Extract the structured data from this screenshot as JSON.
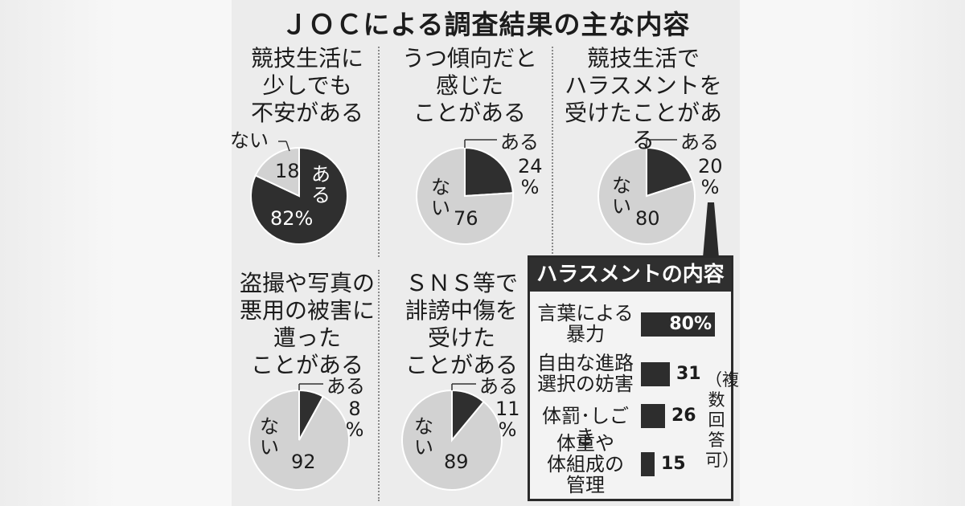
{
  "title": "ＪＯＣによる調査結果の主な内容",
  "labels": {
    "yes": "ある",
    "no": "ない",
    "pct_sign": "%"
  },
  "colors": {
    "dark": "#2f2f2f",
    "light": "#d2d2d2",
    "outline": "#ffffff"
  },
  "chart_data": [
    {
      "type": "pie",
      "title": "競技生活に\n少しでも\n不安がある",
      "slices": [
        {
          "label": "ある",
          "value": 82,
          "text": "82%"
        },
        {
          "label": "ない",
          "value": 18,
          "text": "18"
        }
      ]
    },
    {
      "type": "pie",
      "title": "うつ傾向だと\n感じた\nことがある",
      "slices": [
        {
          "label": "ある",
          "value": 24,
          "text": "24"
        },
        {
          "label": "ない",
          "value": 76,
          "text": "76"
        }
      ]
    },
    {
      "type": "pie",
      "title": "競技生活で\nハラスメントを\n受けたことがある",
      "slices": [
        {
          "label": "ある",
          "value": 20,
          "text": "20"
        },
        {
          "label": "ない",
          "value": 80,
          "text": "80"
        }
      ]
    },
    {
      "type": "pie",
      "title": "盗撮や写真の\n悪用の被害に\n遭った\nことがある",
      "slices": [
        {
          "label": "ある",
          "value": 8,
          "text": "8"
        },
        {
          "label": "ない",
          "value": 92,
          "text": "92"
        }
      ]
    },
    {
      "type": "pie",
      "title": "ＳＮＳ等で\n誹謗中傷を\n受けた\nことがある",
      "slices": [
        {
          "label": "ある",
          "value": 11,
          "text": "11"
        },
        {
          "label": "ない",
          "value": 89,
          "text": "89"
        }
      ]
    },
    {
      "type": "bar",
      "title": "ハラスメントの内容",
      "categories": [
        "言葉による\n暴力",
        "自由な進路\n選択の妨害",
        "体罰･しごき",
        "体重や\n体組成の\n管理"
      ],
      "values": [
        80,
        31,
        26,
        15
      ],
      "value_texts": [
        "80%",
        "31",
        "26",
        "15"
      ],
      "note": "（複数回答可）"
    }
  ]
}
